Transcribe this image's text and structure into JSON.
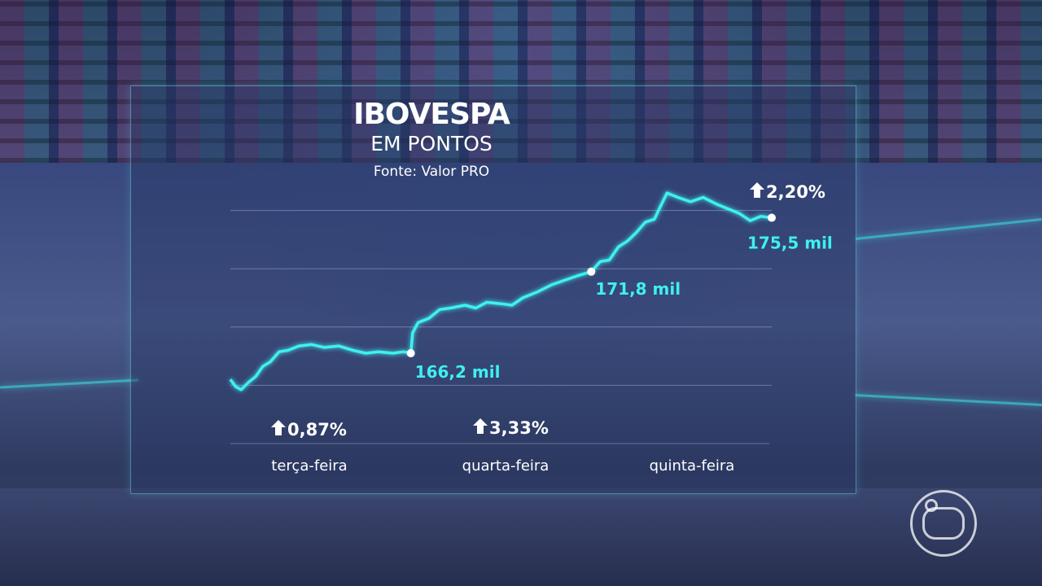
{
  "header": {
    "title": "IBOVESPA",
    "subtitle": "EM PONTOS",
    "source": "Fonte: Valor PRO"
  },
  "logo": "Globo",
  "chart_data": {
    "type": "line",
    "title": "IBOVESPA",
    "subtitle": "EM PONTOS",
    "source": "Fonte: Valor PRO",
    "unit": "mil pontos",
    "line_color": "#3ff0f0",
    "grid": true,
    "ylim": [
      160,
      178
    ],
    "gridlines": [
      164,
      168,
      172,
      176
    ],
    "categories": [
      "terça-feira",
      "quarta-feira",
      "quinta-feira"
    ],
    "day_changes": [
      "0,87%",
      "3,33%",
      "2,20%"
    ],
    "series": [
      {
        "x": [
          0,
          0.03,
          0.06,
          0.1,
          0.14,
          0.18,
          0.22,
          0.27,
          0.32,
          0.38,
          0.45,
          0.52,
          0.6,
          0.68,
          0.75,
          0.82,
          0.9,
          0.96,
          1.0,
          1.01,
          1.04,
          1.1,
          1.16,
          1.22,
          1.3,
          1.36,
          1.42,
          1.5,
          1.56,
          1.62,
          1.7,
          1.78,
          1.85,
          1.92,
          2.0,
          2.05,
          2.1,
          2.15,
          2.2,
          2.25,
          2.3,
          2.35,
          2.38,
          2.42,
          2.48,
          2.55,
          2.62,
          2.7,
          2.76,
          2.82,
          2.88,
          2.94,
          3.0
        ],
        "y": [
          164.4,
          163.9,
          163.7,
          164.2,
          164.6,
          165.3,
          165.6,
          166.3,
          166.4,
          166.7,
          166.8,
          166.6,
          166.7,
          166.4,
          166.2,
          166.3,
          166.2,
          166.3,
          166.2,
          167.6,
          168.3,
          168.6,
          169.2,
          169.3,
          169.5,
          169.3,
          169.7,
          169.6,
          169.5,
          170.0,
          170.4,
          170.9,
          171.2,
          171.5,
          171.8,
          172.5,
          172.6,
          173.5,
          173.9,
          174.5,
          175.2,
          175.4,
          176.2,
          177.2,
          176.9,
          176.6,
          176.9,
          176.4,
          176.1,
          175.8,
          175.3,
          175.6,
          175.5
        ]
      }
    ],
    "annotations": [
      {
        "x": 1.0,
        "y": 166.2,
        "label": "166,2 mil"
      },
      {
        "x": 2.0,
        "y": 171.8,
        "label": "171,8 mil"
      },
      {
        "x": 3.0,
        "y": 175.5,
        "label": "175,5 mil"
      }
    ]
  }
}
